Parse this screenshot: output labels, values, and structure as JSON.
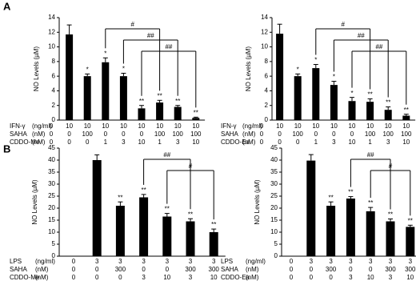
{
  "panel_labels": [
    "A",
    "B"
  ],
  "chart_data": [
    {
      "type": "bar",
      "y_label": "NO Levels (µM)",
      "color": "#000000",
      "ylim": [
        0,
        14
      ],
      "yticks": [
        0,
        2,
        4,
        6,
        8,
        10,
        12,
        14
      ],
      "condition_rows": [
        {
          "name": "IFN-γ",
          "unit": "(ng/ml)",
          "values": [
            0,
            10,
            10,
            10,
            10,
            10,
            10,
            10,
            10
          ]
        },
        {
          "name": "SAHA",
          "unit": "(nM)",
          "values": [
            0,
            0,
            100,
            0,
            0,
            0,
            100,
            100,
            100
          ]
        },
        {
          "name": "CDDO-Me",
          "unit": "(nM)",
          "values": [
            0,
            0,
            0,
            1,
            3,
            10,
            1,
            3,
            10
          ]
        }
      ],
      "values": [
        0,
        11.7,
        6.0,
        7.9,
        6.0,
        1.6,
        2.4,
        1.8,
        0.3
      ],
      "errors": [
        null,
        1.3,
        0.3,
        0.6,
        0.4,
        0.4,
        0.3,
        0.2,
        0.1
      ],
      "stars": [
        null,
        null,
        "*",
        "*",
        "*",
        "**",
        "**",
        "**",
        "**"
      ],
      "brackets": [
        {
          "label": "#",
          "from": 3,
          "to": 6
        },
        {
          "label": "##",
          "from": 4,
          "to": 7
        },
        {
          "label": "##",
          "from": 5,
          "to": 8
        }
      ]
    },
    {
      "type": "bar",
      "y_label": "NO Levels (µM)",
      "color": "#000000",
      "ylim": [
        0,
        14
      ],
      "yticks": [
        0,
        2,
        4,
        6,
        8,
        10,
        12,
        14
      ],
      "condition_rows": [
        {
          "name": "IFN-γ",
          "unit": "(ng/ml)",
          "values": [
            0,
            10,
            10,
            10,
            10,
            10,
            10,
            10,
            10
          ]
        },
        {
          "name": "SAHA",
          "unit": "(nM)",
          "values": [
            0,
            0,
            100,
            0,
            0,
            0,
            100,
            100,
            100
          ]
        },
        {
          "name": "CDDO-Ea",
          "unit": "(nM)",
          "values": [
            0,
            0,
            0,
            1,
            3,
            10,
            1,
            3,
            10
          ]
        }
      ],
      "values": [
        0,
        11.8,
        6.0,
        7.1,
        4.8,
        2.6,
        2.5,
        1.4,
        0.6
      ],
      "errors": [
        null,
        1.3,
        0.3,
        0.5,
        0.5,
        0.5,
        0.4,
        0.4,
        0.2
      ],
      "stars": [
        null,
        null,
        "*",
        "*",
        "*",
        "*",
        "**",
        "**",
        "**"
      ],
      "brackets": [
        {
          "label": "#",
          "from": 3,
          "to": 6
        },
        {
          "label": "##",
          "from": 4,
          "to": 7
        },
        {
          "label": "##",
          "from": 5,
          "to": 8
        }
      ]
    },
    {
      "type": "bar",
      "y_label": "NO Levels (µM)",
      "color": "#000000",
      "ylim": [
        0,
        45
      ],
      "yticks": [
        0,
        5,
        10,
        15,
        20,
        25,
        30,
        35,
        40,
        45
      ],
      "condition_rows": [
        {
          "name": "LPS",
          "unit": "(ng/ml)",
          "values": [
            0,
            3,
            3,
            3,
            3,
            3,
            3
          ]
        },
        {
          "name": "SAHA",
          "unit": "(nM)",
          "values": [
            0,
            0,
            300,
            0,
            0,
            300,
            300
          ]
        },
        {
          "name": "CDDO-Me",
          "unit": "(nM)",
          "values": [
            0,
            0,
            0,
            3,
            10,
            3,
            10
          ]
        }
      ],
      "values": [
        0,
        40,
        21,
        24.5,
        16.5,
        14.5,
        10
      ],
      "errors": [
        null,
        2.2,
        1.6,
        1.2,
        1.3,
        1.1,
        1.3
      ],
      "stars": [
        null,
        null,
        "**",
        "**",
        "**",
        "**",
        "**"
      ],
      "brackets": [
        {
          "label": "##",
          "from": 3,
          "to": 5
        },
        {
          "label": "#",
          "from": 4,
          "to": 6
        }
      ]
    },
    {
      "type": "bar",
      "y_label": "NO Levels (µM)",
      "color": "#000000",
      "ylim": [
        0,
        45
      ],
      "yticks": [
        0,
        5,
        10,
        15,
        20,
        25,
        30,
        35,
        40,
        45
      ],
      "condition_rows": [
        {
          "name": "LPS",
          "unit": "(ng/ml)",
          "values": [
            0,
            3,
            3,
            3,
            3,
            3,
            3
          ]
        },
        {
          "name": "SAHA",
          "unit": "(nM)",
          "values": [
            0,
            0,
            300,
            0,
            0,
            300,
            300
          ]
        },
        {
          "name": "CDDO-Ea",
          "unit": "(nM)",
          "values": [
            0,
            0,
            0,
            3,
            10,
            3,
            10
          ]
        }
      ],
      "values": [
        0,
        39.8,
        21,
        24,
        18.7,
        14.5,
        12.2
      ],
      "errors": [
        null,
        2.5,
        1.6,
        0.8,
        1.6,
        1.0,
        0.7
      ],
      "stars": [
        null,
        null,
        "**",
        "**",
        "**",
        "**",
        "**"
      ],
      "brackets": [
        {
          "label": "##",
          "from": 3,
          "to": 5
        },
        {
          "label": "#",
          "from": 4,
          "to": 6
        }
      ]
    }
  ]
}
